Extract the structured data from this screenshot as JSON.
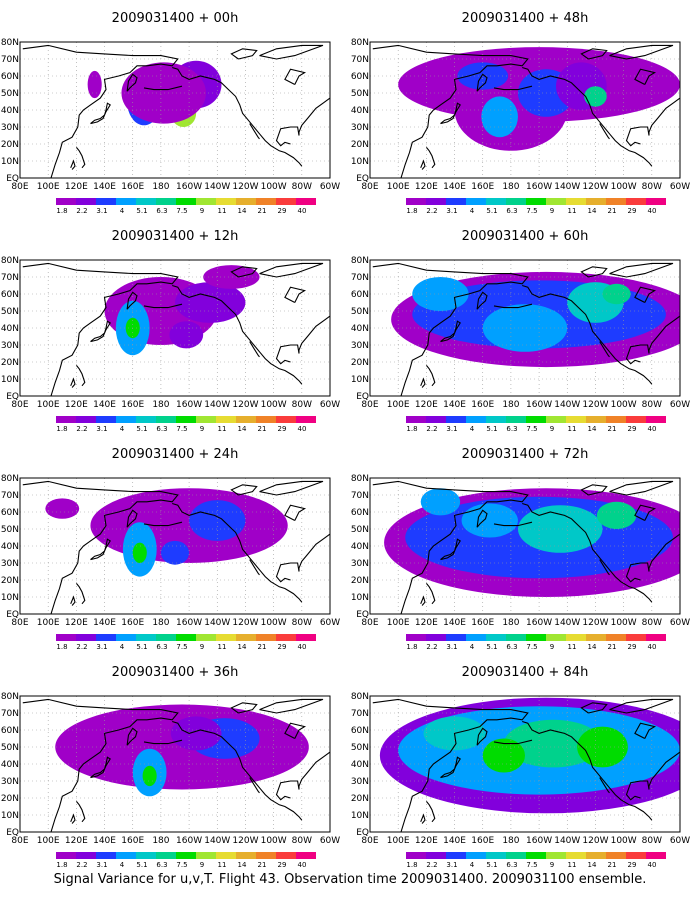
{
  "figure": {
    "panels": [
      {
        "title": "2009031400 + 00h",
        "blobs": [
          {
            "lon": 196,
            "lat": 38,
            "rx": 9,
            "ry": 8,
            "level": 7
          },
          {
            "lon": 168,
            "lat": 45,
            "rx": 12,
            "ry": 14,
            "level": 2
          },
          {
            "lon": 205,
            "lat": 55,
            "rx": 18,
            "ry": 14,
            "level": 1
          },
          {
            "lon": 182,
            "lat": 50,
            "rx": 30,
            "ry": 18,
            "level": 0
          },
          {
            "lon": 133,
            "lat": 55,
            "rx": 5,
            "ry": 8,
            "level": 0
          }
        ]
      },
      {
        "title": "2009031400 + 48h",
        "blobs": [
          {
            "lon": 200,
            "lat": 55,
            "rx": 100,
            "ry": 22,
            "level": 0
          },
          {
            "lon": 180,
            "lat": 40,
            "rx": 40,
            "ry": 24,
            "level": 0
          },
          {
            "lon": 172,
            "lat": 36,
            "rx": 6,
            "ry": 6,
            "level": 7
          },
          {
            "lon": 172,
            "lat": 36,
            "rx": 13,
            "ry": 12,
            "level": 3
          },
          {
            "lon": 205,
            "lat": 50,
            "rx": 20,
            "ry": 14,
            "level": 2
          },
          {
            "lon": 230,
            "lat": 54,
            "rx": 18,
            "ry": 14,
            "level": 1
          },
          {
            "lon": 240,
            "lat": 48,
            "rx": 8,
            "ry": 6,
            "level": 5
          },
          {
            "lon": 160,
            "lat": 60,
            "rx": 18,
            "ry": 8,
            "level": 2
          }
        ]
      },
      {
        "title": "2009031400 + 12h",
        "blobs": [
          {
            "lon": 180,
            "lat": 50,
            "rx": 40,
            "ry": 20,
            "level": 0
          },
          {
            "lon": 160,
            "lat": 40,
            "rx": 12,
            "ry": 16,
            "level": 3
          },
          {
            "lon": 160,
            "lat": 40,
            "rx": 5,
            "ry": 6,
            "level": 6
          },
          {
            "lon": 215,
            "lat": 55,
            "rx": 25,
            "ry": 12,
            "level": 1
          },
          {
            "lon": 198,
            "lat": 36,
            "rx": 12,
            "ry": 8,
            "level": 1
          },
          {
            "lon": 230,
            "lat": 70,
            "rx": 20,
            "ry": 7,
            "level": 0
          }
        ]
      },
      {
        "title": "2009031400 + 60h",
        "blobs": [
          {
            "lon": 205,
            "lat": 45,
            "rx": 110,
            "ry": 28,
            "level": 0
          },
          {
            "lon": 200,
            "lat": 48,
            "rx": 90,
            "ry": 20,
            "level": 2
          },
          {
            "lon": 190,
            "lat": 40,
            "rx": 30,
            "ry": 14,
            "level": 3
          },
          {
            "lon": 240,
            "lat": 55,
            "rx": 20,
            "ry": 12,
            "level": 4
          },
          {
            "lon": 255,
            "lat": 60,
            "rx": 10,
            "ry": 6,
            "level": 5
          },
          {
            "lon": 130,
            "lat": 60,
            "rx": 20,
            "ry": 10,
            "level": 3
          }
        ]
      },
      {
        "title": "2009031400 + 24h",
        "blobs": [
          {
            "lon": 200,
            "lat": 52,
            "rx": 70,
            "ry": 22,
            "level": 0
          },
          {
            "lon": 165,
            "lat": 38,
            "rx": 12,
            "ry": 16,
            "level": 3
          },
          {
            "lon": 165,
            "lat": 36,
            "rx": 5,
            "ry": 6,
            "level": 6
          },
          {
            "lon": 220,
            "lat": 55,
            "rx": 20,
            "ry": 12,
            "level": 2
          },
          {
            "lon": 190,
            "lat": 36,
            "rx": 10,
            "ry": 7,
            "level": 2
          },
          {
            "lon": 110,
            "lat": 62,
            "rx": 12,
            "ry": 6,
            "level": 0
          }
        ]
      },
      {
        "title": "2009031400 + 72h",
        "blobs": [
          {
            "lon": 205,
            "lat": 42,
            "rx": 115,
            "ry": 32,
            "level": 0
          },
          {
            "lon": 200,
            "lat": 45,
            "rx": 95,
            "ry": 24,
            "level": 2
          },
          {
            "lon": 215,
            "lat": 50,
            "rx": 30,
            "ry": 14,
            "level": 4
          },
          {
            "lon": 165,
            "lat": 55,
            "rx": 20,
            "ry": 10,
            "level": 3
          },
          {
            "lon": 255,
            "lat": 58,
            "rx": 14,
            "ry": 8,
            "level": 5
          },
          {
            "lon": 130,
            "lat": 66,
            "rx": 14,
            "ry": 8,
            "level": 3
          }
        ]
      },
      {
        "title": "2009031400 + 36h",
        "blobs": [
          {
            "lon": 195,
            "lat": 50,
            "rx": 90,
            "ry": 25,
            "level": 0
          },
          {
            "lon": 172,
            "lat": 35,
            "rx": 12,
            "ry": 14,
            "level": 3
          },
          {
            "lon": 172,
            "lat": 33,
            "rx": 5,
            "ry": 6,
            "level": 6
          },
          {
            "lon": 225,
            "lat": 55,
            "rx": 25,
            "ry": 12,
            "level": 2
          },
          {
            "lon": 205,
            "lat": 58,
            "rx": 18,
            "ry": 10,
            "level": 1
          }
        ]
      },
      {
        "title": "2009031400 + 84h",
        "blobs": [
          {
            "lon": 205,
            "lat": 45,
            "rx": 118,
            "ry": 34,
            "level": 1
          },
          {
            "lon": 200,
            "lat": 48,
            "rx": 100,
            "ry": 26,
            "level": 3
          },
          {
            "lon": 210,
            "lat": 52,
            "rx": 35,
            "ry": 14,
            "level": 5
          },
          {
            "lon": 140,
            "lat": 58,
            "rx": 22,
            "ry": 10,
            "level": 4
          },
          {
            "lon": 245,
            "lat": 50,
            "rx": 18,
            "ry": 12,
            "level": 6
          },
          {
            "lon": 175,
            "lat": 45,
            "rx": 15,
            "ry": 10,
            "level": 6
          }
        ]
      }
    ],
    "lon_tick_labels": [
      "80E",
      "100E",
      "120E",
      "140E",
      "160E",
      "180",
      "160W",
      "140W",
      "120W",
      "100W",
      "80W",
      "60W"
    ],
    "lat_tick_labels": [
      "EQ",
      "10N",
      "20N",
      "30N",
      "40N",
      "50N",
      "60N",
      "70N",
      "80N"
    ],
    "colorbar_labels": [
      "1.8",
      "2.2",
      "3.1",
      "4",
      "5.1",
      "6.3",
      "7.5",
      "9",
      "11",
      "14",
      "21",
      "29",
      "40"
    ],
    "colorbar_colors": [
      "#a000c8",
      "#8200dc",
      "#1e3cff",
      "#00a0ff",
      "#00c8c8",
      "#00d28c",
      "#00dc00",
      "#a0e632",
      "#e6dc32",
      "#e6af2d",
      "#f08228",
      "#fa3c3c",
      "#f00082"
    ],
    "caption": "Signal Variance for u,v,T. Flight 43. Observation time 2009031400. 2009031100 ensemble."
  },
  "chart_data": {
    "type": "heatmap",
    "projection": "lat-lon",
    "lon_range": [
      "80E",
      "60W"
    ],
    "lat_range": [
      "EQ",
      "80N"
    ],
    "levels": [
      "1.8",
      "2.2",
      "3.1",
      "4",
      "5.1",
      "6.3",
      "7.5",
      "9",
      "11",
      "14",
      "21",
      "29",
      "40"
    ],
    "panel_titles": [
      "2009031400 + 00h",
      "2009031400 + 48h",
      "2009031400 + 12h",
      "2009031400 + 60h",
      "2009031400 + 24h",
      "2009031400 + 72h",
      "2009031400 + 36h",
      "2009031400 + 84h"
    ]
  }
}
